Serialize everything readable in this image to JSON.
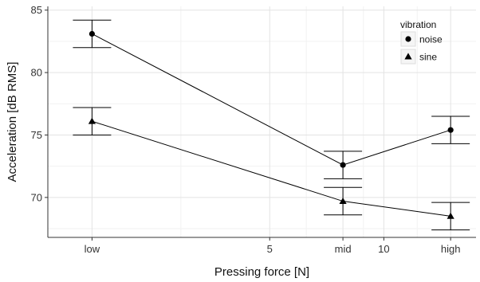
{
  "chart_data": {
    "type": "line",
    "xlabel": "Pressing force [N]",
    "ylabel": "Acceleration [dB RMS]",
    "x_scale": "log",
    "xlim": [
      1.3,
      17.5
    ],
    "ylim": [
      66.8,
      85.3
    ],
    "grid": true,
    "x_major_ticks": [
      {
        "value": 1.7,
        "label": "low"
      },
      {
        "value": 5,
        "label": "5"
      },
      {
        "value": 7.8,
        "label": "mid"
      },
      {
        "value": 10,
        "label": "10"
      },
      {
        "value": 15,
        "label": "high"
      }
    ],
    "y_major_ticks": [
      70,
      75,
      80,
      85
    ],
    "legend": {
      "title": "vibration",
      "placement": "top-right",
      "entries": [
        {
          "label": "noise",
          "marker": "circle"
        },
        {
          "label": "sine",
          "marker": "triangle"
        }
      ]
    },
    "x": [
      1.7,
      7.8,
      15
    ],
    "series": [
      {
        "name": "noise",
        "marker": "circle",
        "values": [
          83.1,
          72.6,
          75.4
        ],
        "error_low": [
          82.0,
          71.5,
          74.3
        ],
        "error_high": [
          84.2,
          73.7,
          76.5
        ]
      },
      {
        "name": "sine",
        "marker": "triangle",
        "values": [
          76.1,
          69.7,
          68.5
        ],
        "error_low": [
          75.0,
          68.6,
          67.4
        ],
        "error_high": [
          77.2,
          70.8,
          69.6
        ]
      }
    ],
    "colors": {
      "line": "#000000",
      "grid_major": "#e3e3e3",
      "grid_minor": "#f2f2f2",
      "axis": "#333333"
    }
  }
}
